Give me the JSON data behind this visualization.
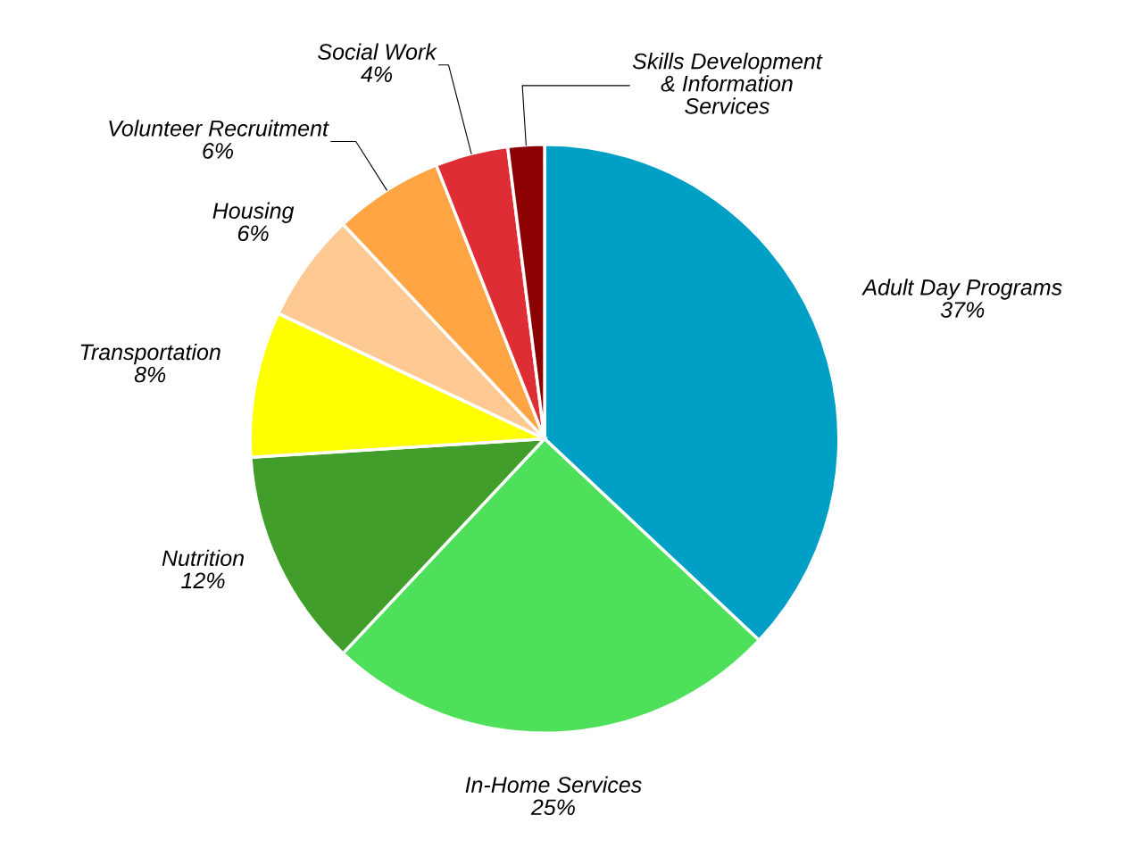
{
  "chart_data": {
    "type": "pie",
    "categories": [
      "Adult Day Programs",
      "In-Home Services",
      "Nutrition",
      "Transportation",
      "Housing",
      "Volunteer Recruitment",
      "Social Work",
      "Skills Development\n& Information\nServices"
    ],
    "values": [
      37,
      25,
      12,
      8,
      6,
      6,
      4,
      2
    ],
    "value_labels": [
      "37%",
      "25%",
      "12%",
      "8%",
      "6%",
      "6%",
      "4%",
      null
    ],
    "colors": [
      "#00a0c6",
      "#4ee05a",
      "#429e2a",
      "#ffff00",
      "#ffc993",
      "#ffa544",
      "#de2d35",
      "#8b0000"
    ],
    "legend": false
  }
}
